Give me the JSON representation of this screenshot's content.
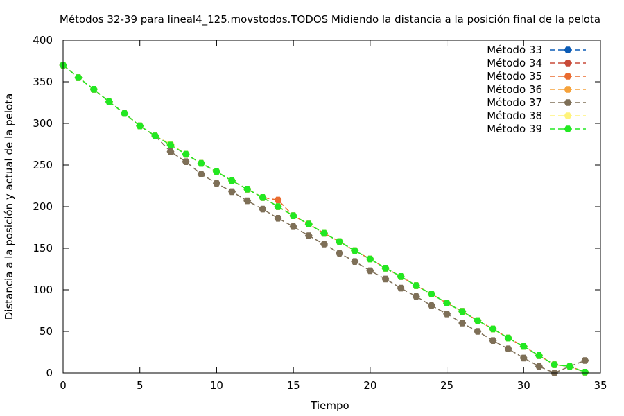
{
  "chart_data": {
    "type": "line",
    "title": "Métodos 32-39 para lineal4_125.movstodos.TODOS Midiendo la distancia a la posición final de la pelota",
    "xlabel": "Tiempo",
    "ylabel": "Distancia a la posición y actual de la pelota",
    "xlim": [
      0,
      35
    ],
    "ylim": [
      0,
      400
    ],
    "xticks": [
      0,
      5,
      10,
      15,
      20,
      25,
      30,
      35
    ],
    "yticks": [
      0,
      50,
      100,
      150,
      200,
      250,
      300,
      350,
      400
    ],
    "grid": false,
    "legend_position": "top-right",
    "x": [
      0,
      1,
      2,
      3,
      4,
      5,
      6,
      7,
      8,
      9,
      10,
      11,
      12,
      13,
      14,
      15,
      16,
      17,
      18,
      19,
      20,
      21,
      22,
      23,
      24,
      25,
      26,
      27,
      28,
      29,
      30,
      31,
      32,
      33,
      34
    ],
    "series": [
      {
        "name": "Método 33",
        "color": "#0b5bb5",
        "marker": "filled-hexagon",
        "values": [
          370,
          355,
          341,
          326,
          312,
          297,
          285,
          275,
          263,
          252,
          242,
          231,
          221,
          211,
          200,
          189,
          179,
          168,
          158,
          147,
          137,
          126,
          116,
          105,
          95,
          84,
          74,
          63,
          53,
          42,
          32,
          21,
          10,
          8,
          1
        ]
      },
      {
        "name": "Método 34",
        "color": "#c84a38",
        "marker": "filled-hexagon",
        "values": [
          370,
          355,
          341,
          326,
          312,
          297,
          285,
          275,
          263,
          252,
          242,
          231,
          221,
          211,
          200,
          189,
          179,
          168,
          158,
          147,
          137,
          126,
          116,
          105,
          95,
          84,
          74,
          63,
          53,
          42,
          32,
          21,
          10,
          8,
          1
        ]
      },
      {
        "name": "Método 35",
        "color": "#ea6b2f",
        "marker": "filled-hexagon",
        "values": [
          370,
          355,
          341,
          326,
          312,
          297,
          285,
          275,
          263,
          252,
          242,
          231,
          221,
          211,
          208,
          189,
          179,
          168,
          158,
          147,
          137,
          126,
          116,
          105,
          95,
          84,
          74,
          63,
          53,
          42,
          32,
          21,
          10,
          8,
          1
        ]
      },
      {
        "name": "Método 36",
        "color": "#f6a23a",
        "marker": "filled-hexagon",
        "values": [
          370,
          355,
          341,
          326,
          312,
          297,
          285,
          275,
          263,
          252,
          242,
          231,
          221,
          211,
          200,
          189,
          179,
          168,
          158,
          147,
          137,
          126,
          116,
          105,
          95,
          84,
          74,
          63,
          53,
          42,
          32,
          21,
          10,
          8,
          1
        ]
      },
      {
        "name": "Método 37",
        "color": "#7e6f57",
        "marker": "filled-hexagon",
        "values": [
          370,
          355,
          341,
          326,
          312,
          297,
          285,
          266,
          254,
          239,
          228,
          218,
          207,
          197,
          186,
          176,
          165,
          155,
          144,
          134,
          123,
          113,
          102,
          92,
          81,
          71,
          60,
          50,
          39,
          29,
          18,
          8,
          0,
          8,
          15
        ]
      },
      {
        "name": "Método 38",
        "color": "#fff37a",
        "marker": "filled-hexagon",
        "values": [
          370,
          355,
          341,
          326,
          312,
          297,
          285,
          275,
          263,
          252,
          242,
          231,
          221,
          211,
          200,
          189,
          179,
          168,
          158,
          147,
          137,
          126,
          116,
          105,
          95,
          84,
          74,
          63,
          53,
          42,
          32,
          21,
          10,
          8,
          1
        ]
      },
      {
        "name": "Método 39",
        "color": "#22e822",
        "marker": "filled-hexagon",
        "values": [
          370,
          355,
          341,
          326,
          312,
          297,
          285,
          274,
          263,
          252,
          242,
          231,
          221,
          211,
          200,
          189,
          179,
          168,
          158,
          147,
          137,
          126,
          116,
          105,
          95,
          84,
          74,
          63,
          53,
          42,
          32,
          21,
          10,
          8,
          1
        ]
      }
    ]
  }
}
